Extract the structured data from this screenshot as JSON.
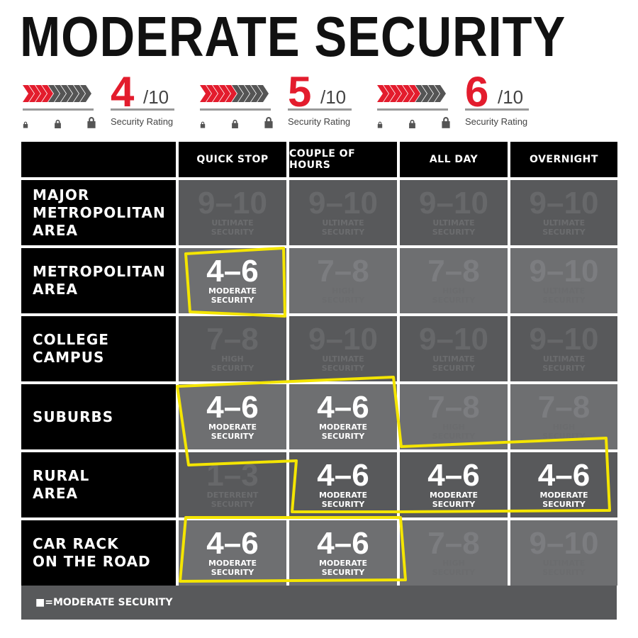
{
  "title": "MODERATE SECURITY",
  "colors": {
    "accent": "#e31c2d",
    "highlight": "#f4e500",
    "dark_cell": "#58595b",
    "light_cell": "#6e6f71"
  },
  "ratings": [
    {
      "value": "4",
      "denominator": "/10",
      "label": "Security Rating",
      "filled": 4
    },
    {
      "value": "5",
      "denominator": "/10",
      "label": "Security Rating",
      "filled": 5
    },
    {
      "value": "6",
      "denominator": "/10",
      "label": "Security Rating",
      "filled": 6
    }
  ],
  "columns": [
    "QUICK STOP",
    "COUPLE OF HOURS",
    "ALL DAY",
    "OVERNIGHT"
  ],
  "rows": [
    {
      "label": "MAJOR\nMETROPOLITAN\nAREA",
      "shade": "dark",
      "cells": [
        {
          "range": "9–10",
          "level": "ULTIMATE\nSECURITY"
        },
        {
          "range": "9–10",
          "level": "ULTIMATE\nSECURITY"
        },
        {
          "range": "9–10",
          "level": "ULTIMATE\nSECURITY"
        },
        {
          "range": "9–10",
          "level": "ULTIMATE\nSECURITY"
        }
      ]
    },
    {
      "label": "METROPOLITAN\nAREA",
      "shade": "light",
      "cells": [
        {
          "range": "4–6",
          "level": "MODERATE\nSECURITY",
          "highlight": true
        },
        {
          "range": "7–8",
          "level": "HIGH\nSECURITY"
        },
        {
          "range": "7–8",
          "level": "HIGH\nSECURITY"
        },
        {
          "range": "9–10",
          "level": "ULTIMATE\nSECURITY"
        }
      ]
    },
    {
      "label": "COLLEGE\nCAMPUS",
      "shade": "dark",
      "cells": [
        {
          "range": "7–8",
          "level": "HIGH\nSECURITY"
        },
        {
          "range": "9–10",
          "level": "ULTIMATE\nSECURITY"
        },
        {
          "range": "9–10",
          "level": "ULTIMATE\nSECURITY"
        },
        {
          "range": "9–10",
          "level": "ULTIMATE\nSECURITY"
        }
      ]
    },
    {
      "label": "SUBURBS",
      "shade": "light",
      "cells": [
        {
          "range": "4–6",
          "level": "MODERATE\nSECURITY",
          "highlight": true
        },
        {
          "range": "4–6",
          "level": "MODERATE\nSECURITY",
          "highlight": true
        },
        {
          "range": "7–8",
          "level": "HIGH\nSECURITY"
        },
        {
          "range": "7–8",
          "level": "HIGH\nSECURITY"
        }
      ]
    },
    {
      "label": "RURAL\nAREA",
      "shade": "dark",
      "cells": [
        {
          "range": "1–3",
          "level": "DETERRENT\nSECURITY"
        },
        {
          "range": "4–6",
          "level": "MODERATE\nSECURITY",
          "highlight": true
        },
        {
          "range": "4–6",
          "level": "MODERATE\nSECURITY",
          "highlight": true
        },
        {
          "range": "4–6",
          "level": "MODERATE\nSECURITY",
          "highlight": true
        }
      ]
    },
    {
      "label": "CAR RACK\nON THE ROAD",
      "shade": "light",
      "cells": [
        {
          "range": "4–6",
          "level": "MODERATE\nSECURITY",
          "highlight": true
        },
        {
          "range": "4–6",
          "level": "MODERATE\nSECURITY",
          "highlight": true
        },
        {
          "range": "7–8",
          "level": "HIGH\nSECURITY"
        },
        {
          "range": "9–10",
          "level": "ULTIMATE\nSECURITY"
        }
      ]
    }
  ],
  "legend": "■=MODERATE SECURITY"
}
